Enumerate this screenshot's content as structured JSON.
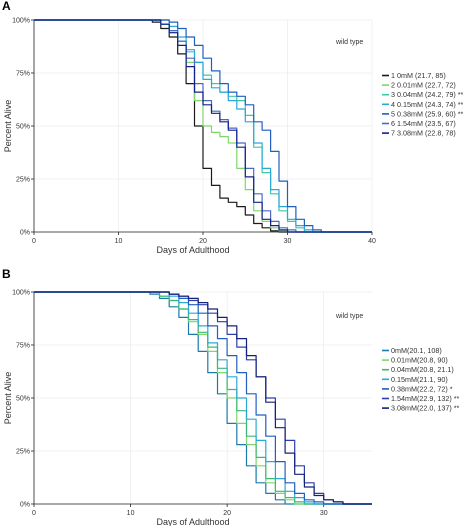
{
  "chart_data": [
    {
      "type": "line",
      "panel_label": "A",
      "annotation": "wild type",
      "xlabel": "Days of Adulthood",
      "ylabel": "Percent Alive",
      "xlim": [
        0,
        40
      ],
      "ylim": [
        0,
        100
      ],
      "x_ticks": [
        "0",
        "10",
        "20",
        "30",
        "40"
      ],
      "y_ticks": [
        "0%",
        "25%",
        "50%",
        "75%",
        "100%"
      ],
      "grid": true,
      "legend_position": "right",
      "series": [
        {
          "name": "1 0mM (21.7, 85)",
          "color": "#1a1a1a",
          "x": [
            0,
            12,
            14,
            15,
            16,
            17,
            18,
            19,
            20,
            21,
            22,
            23,
            24,
            25,
            26,
            27,
            28,
            29
          ],
          "y": [
            100,
            100,
            99,
            96,
            92,
            84,
            70,
            50,
            30,
            22,
            16,
            14,
            12,
            8,
            4,
            2,
            0.5,
            0
          ]
        },
        {
          "name": "2 0.01mM (22.7, 72)",
          "color": "#7fd66a",
          "x": [
            0,
            13,
            15,
            16,
            17,
            18,
            19,
            20,
            21,
            22,
            23,
            24,
            25,
            26,
            27,
            28,
            29,
            30
          ],
          "y": [
            100,
            100,
            98,
            95,
            90,
            80,
            62,
            50,
            47,
            45,
            42,
            30,
            20,
            10,
            5,
            2,
            0.5,
            0
          ]
        },
        {
          "name": "3 0.04mM (24.2, 79) **",
          "color": "#3cc9a6",
          "x": [
            0,
            13,
            15,
            16,
            17,
            18,
            19,
            20,
            21,
            22,
            23,
            24,
            25,
            26,
            27,
            28,
            29,
            30,
            31,
            32
          ],
          "y": [
            100,
            100,
            98,
            94,
            90,
            85,
            80,
            74,
            70,
            66,
            64,
            62,
            55,
            40,
            28,
            18,
            10,
            5,
            2,
            0
          ]
        },
        {
          "name": "4 0.15mM (24.3, 74) **",
          "color": "#2aa8d8",
          "x": [
            0,
            14,
            16,
            17,
            18,
            19,
            20,
            21,
            22,
            23,
            24,
            25,
            26,
            27,
            28,
            29,
            30,
            31,
            32,
            33
          ],
          "y": [
            100,
            100,
            97,
            92,
            86,
            80,
            72,
            68,
            66,
            62,
            58,
            52,
            42,
            30,
            20,
            12,
            6,
            3,
            1,
            0
          ]
        },
        {
          "name": "5 0.38mM (25.9, 60) **",
          "color": "#1f5fbf",
          "x": [
            0,
            14,
            16,
            17,
            18,
            19,
            20,
            21,
            22,
            23,
            24,
            25,
            26,
            27,
            28,
            29,
            30,
            31,
            32,
            33,
            34
          ],
          "y": [
            100,
            100,
            99,
            96,
            92,
            88,
            82,
            76,
            70,
            66,
            64,
            60,
            52,
            48,
            38,
            24,
            12,
            6,
            3,
            1,
            0
          ]
        },
        {
          "name": "6 1.54mM (23.5, 67)",
          "color": "#4a68c4",
          "x": [
            0,
            13,
            15,
            16,
            17,
            18,
            19,
            20,
            21,
            22,
            23,
            24,
            25,
            26,
            27,
            28,
            29,
            30,
            31
          ],
          "y": [
            100,
            100,
            98,
            95,
            90,
            82,
            70,
            62,
            57,
            53,
            49,
            42,
            30,
            18,
            10,
            5,
            2,
            1,
            0
          ]
        },
        {
          "name": "7 3.08mM (22.8, 78)",
          "color": "#13208a",
          "x": [
            0,
            13,
            15,
            16,
            17,
            18,
            19,
            20,
            21,
            22,
            23,
            24,
            25,
            26,
            27,
            28,
            29,
            30
          ],
          "y": [
            100,
            100,
            98,
            94,
            88,
            78,
            66,
            60,
            56,
            52,
            48,
            40,
            26,
            14,
            6,
            3,
            1,
            0
          ]
        }
      ]
    },
    {
      "type": "line",
      "panel_label": "B",
      "annotation": "wild type",
      "xlabel": "Days of Adulthood",
      "ylabel": "Percent Alive",
      "xlim": [
        0,
        35
      ],
      "ylim": [
        0,
        100
      ],
      "x_ticks": [
        "0",
        "10",
        "20",
        "30"
      ],
      "y_ticks": [
        "0%",
        "25%",
        "50%",
        "75%",
        "100%"
      ],
      "grid": true,
      "legend_position": "right",
      "series": [
        {
          "name": "0mM(20.1, 108)",
          "color": "#1a7ab0",
          "x": [
            0,
            10,
            12,
            13,
            14,
            15,
            16,
            17,
            18,
            19,
            20,
            21,
            22,
            23,
            24,
            25,
            26
          ],
          "y": [
            100,
            100,
            99,
            97,
            93,
            88,
            80,
            72,
            62,
            52,
            38,
            28,
            18,
            10,
            5,
            2,
            0
          ]
        },
        {
          "name": "0.01mM(20.8, 90)",
          "color": "#7fd66a",
          "x": [
            0,
            11,
            13,
            14,
            15,
            16,
            17,
            18,
            19,
            20,
            21,
            22,
            23,
            24,
            25,
            26,
            27
          ],
          "y": [
            100,
            100,
            98,
            96,
            92,
            86,
            80,
            72,
            62,
            50,
            38,
            28,
            18,
            10,
            5,
            2,
            0
          ]
        },
        {
          "name": "0.04mM(20.8, 21.1)",
          "color": "#3cb878",
          "x": [
            0,
            11,
            13,
            14,
            15,
            16,
            17,
            18,
            19,
            20,
            21,
            22,
            23,
            24,
            25,
            26,
            27,
            28
          ],
          "y": [
            100,
            100,
            98,
            96,
            92,
            87,
            81,
            74,
            64,
            54,
            44,
            32,
            22,
            12,
            6,
            3,
            1,
            0
          ]
        },
        {
          "name": "0.15mM(21.1, 90)",
          "color": "#2aa8d8",
          "x": [
            0,
            12,
            14,
            15,
            16,
            17,
            18,
            19,
            20,
            21,
            22,
            23,
            24,
            25,
            26,
            27,
            28,
            29
          ],
          "y": [
            100,
            100,
            98,
            95,
            90,
            84,
            76,
            68,
            60,
            50,
            40,
            30,
            20,
            12,
            6,
            3,
            1,
            0
          ]
        },
        {
          "name": "0.38mM(22.2, 72) *",
          "color": "#1f5fbf",
          "x": [
            0,
            12,
            14,
            15,
            16,
            17,
            18,
            19,
            20,
            21,
            22,
            23,
            24,
            25,
            26,
            27,
            28,
            29,
            30
          ],
          "y": [
            100,
            100,
            99,
            97,
            94,
            90,
            84,
            78,
            70,
            62,
            52,
            42,
            32,
            20,
            10,
            5,
            2,
            1,
            0
          ]
        },
        {
          "name": "1.54mM(22.9, 132) **",
          "color": "#2f3fa8",
          "x": [
            0,
            12,
            14,
            15,
            16,
            17,
            18,
            19,
            20,
            21,
            22,
            23,
            24,
            25,
            26,
            27,
            28,
            29,
            30,
            31,
            32
          ],
          "y": [
            100,
            100,
            99,
            98,
            96,
            94,
            90,
            86,
            80,
            74,
            68,
            60,
            50,
            40,
            30,
            18,
            10,
            5,
            2,
            1,
            0
          ]
        },
        {
          "name": "3.08mM(22.0, 137) **",
          "color": "#14207a",
          "x": [
            0,
            12,
            14,
            15,
            16,
            17,
            18,
            19,
            20,
            21,
            22,
            23,
            24,
            25,
            26,
            27,
            28,
            29,
            30,
            31,
            32
          ],
          "y": [
            100,
            100,
            99,
            98,
            97,
            95,
            92,
            88,
            84,
            78,
            70,
            60,
            48,
            36,
            24,
            14,
            8,
            4,
            2,
            1,
            0
          ]
        }
      ]
    }
  ]
}
